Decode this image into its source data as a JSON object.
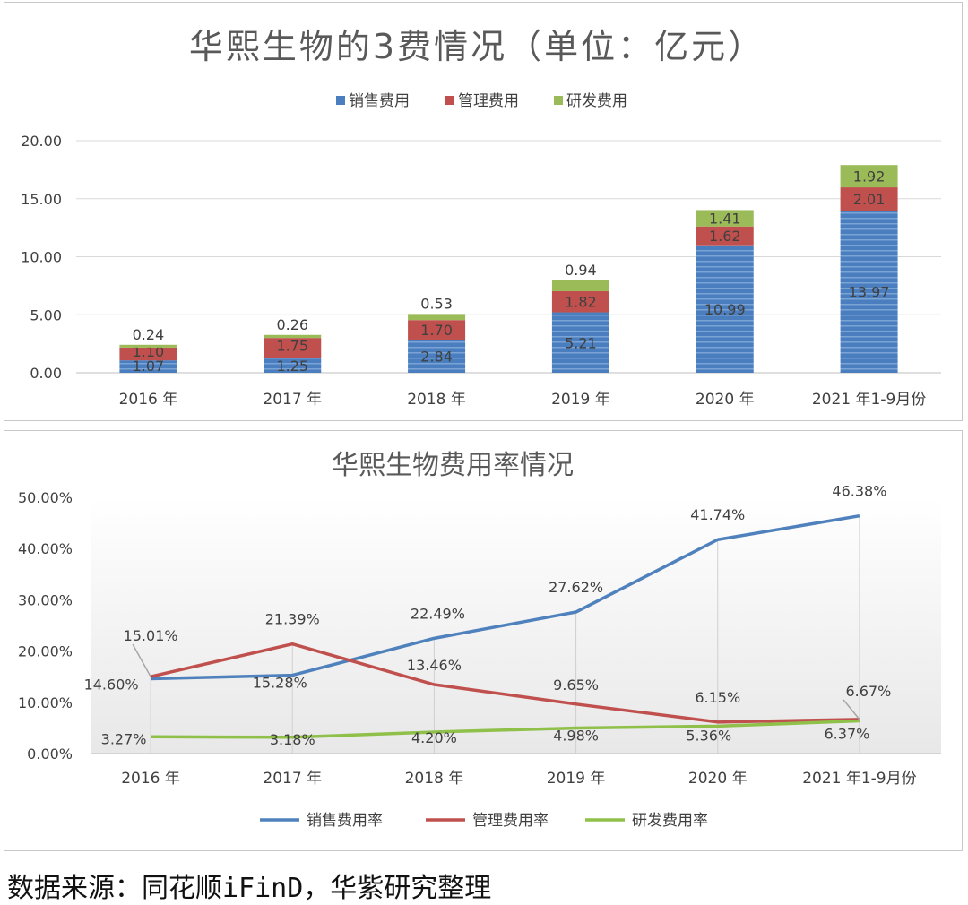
{
  "colors": {
    "sales": "#4a7ebf",
    "admin": "#c0504d",
    "rd": "#9bbb59",
    "sales_line": "#4f81bd",
    "admin_line": "#c0504d",
    "rd_line": "#8fc04a"
  },
  "source_text": "数据来源：同花顺iFinD，华紫研究整理",
  "chart_data": [
    {
      "type": "bar",
      "stacked": true,
      "title": "华熙生物的3费情况（单位：亿元）",
      "categories": [
        "2016 年",
        "2017 年",
        "2018 年",
        "2019 年",
        "2020 年",
        "2021 年1-9月份"
      ],
      "series": [
        {
          "name": "销售费用",
          "values": [
            1.07,
            1.25,
            2.84,
            5.21,
            10.99,
            13.97
          ],
          "labels": [
            "1.07",
            "1.25",
            "2.84",
            "5.21",
            "10.99",
            "13.97"
          ]
        },
        {
          "name": "管理费用",
          "values": [
            1.1,
            1.75,
            1.7,
            1.82,
            1.62,
            2.01
          ],
          "labels": [
            "1.10",
            "1.75",
            "1.70",
            "1.82",
            "1.62",
            "2.01"
          ]
        },
        {
          "name": "研发费用",
          "values": [
            0.24,
            0.26,
            0.53,
            0.94,
            1.41,
            1.92
          ],
          "labels": [
            "0.24",
            "0.26",
            "0.53",
            "0.94",
            "1.41",
            "1.92"
          ]
        }
      ],
      "yticks": [
        "0.00",
        "5.00",
        "10.00",
        "15.00",
        "20.00"
      ],
      "ylim": [
        0,
        20
      ],
      "legend_position": "top"
    },
    {
      "type": "line",
      "title": "华熙生物费用率情况",
      "categories": [
        "2016 年",
        "2017 年",
        "2018 年",
        "2019 年",
        "2020 年",
        "2021 年1-9月份"
      ],
      "series": [
        {
          "name": "销售费用率",
          "values": [
            14.6,
            15.28,
            22.49,
            27.62,
            41.74,
            46.38
          ],
          "labels": [
            "14.60%",
            "15.28%",
            "22.49%",
            "27.62%",
            "41.74%",
            "46.38%"
          ]
        },
        {
          "name": "管理费用率",
          "values": [
            15.01,
            21.39,
            13.46,
            9.65,
            6.15,
            6.67
          ],
          "labels": [
            "15.01%",
            "21.39%",
            "13.46%",
            "9.65%",
            "6.15%",
            "6.67%"
          ]
        },
        {
          "name": "研发费用率",
          "values": [
            3.27,
            3.18,
            4.2,
            4.98,
            5.36,
            6.37
          ],
          "labels": [
            "3.27%",
            "3.18%",
            "4.20%",
            "4.98%",
            "5.36%",
            "6.37%"
          ]
        }
      ],
      "yticks": [
        "0.00%",
        "10.00%",
        "20.00%",
        "30.00%",
        "40.00%",
        "50.00%"
      ],
      "ylim": [
        0,
        50
      ],
      "legend_position": "bottom"
    }
  ]
}
